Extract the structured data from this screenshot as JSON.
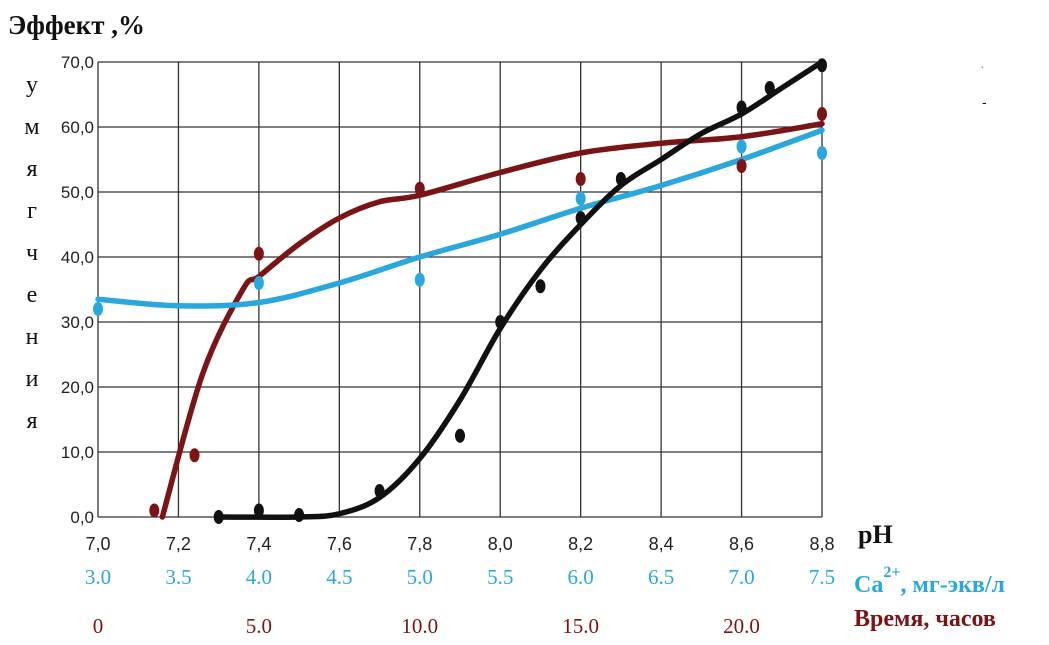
{
  "chart_data": {
    "type": "line",
    "ylabel": "Эффект ,%",
    "ylabel_vertical": [
      "у",
      "м",
      "я",
      "г",
      "ч",
      "е",
      "н",
      "и",
      "я"
    ],
    "y_ticks": [
      "0,0",
      "10,0",
      "20,0",
      "30,0",
      "40,0",
      "50,0",
      "60,0",
      "70,0"
    ],
    "ylim": [
      0,
      70
    ],
    "x_axes": [
      {
        "name": "pH",
        "ticks": [
          "7,0",
          "7,2",
          "7,4",
          "7,6",
          "7,8",
          "8,0",
          "8,2",
          "8,4",
          "8,6",
          "8,8"
        ],
        "range": [
          7.0,
          8.8
        ]
      },
      {
        "name": "Ca",
        "name_sup": "2+",
        "name_suffix": ", мг-экв/л",
        "ticks": [
          "3.0",
          "3.5",
          "4.0",
          "4.5",
          "5.0",
          "5.5",
          "6.0",
          "6.5",
          "7.0",
          "7.5"
        ],
        "range": [
          3.0,
          7.5
        ]
      },
      {
        "name": "Время, часов",
        "ticks": [
          "0",
          "5.0",
          "10.0",
          "15.0",
          "20.0"
        ],
        "range": [
          0,
          22.5
        ]
      }
    ],
    "grid": true,
    "series": [
      {
        "axis": "pH",
        "color": "#111111",
        "points": [
          [
            7.3,
            0.0
          ],
          [
            7.4,
            1.0
          ],
          [
            7.5,
            0.3
          ],
          [
            7.7,
            4.0
          ],
          [
            7.9,
            12.5
          ],
          [
            8.0,
            30.0
          ],
          [
            8.1,
            35.5
          ],
          [
            8.2,
            46.0
          ],
          [
            8.3,
            52.0
          ],
          [
            8.6,
            63.0
          ],
          [
            8.67,
            66.0
          ],
          [
            8.8,
            69.5
          ]
        ],
        "curve": [
          [
            7.3,
            0
          ],
          [
            7.5,
            0
          ],
          [
            7.6,
            0.5
          ],
          [
            7.7,
            3
          ],
          [
            7.8,
            9
          ],
          [
            7.9,
            18
          ],
          [
            8.0,
            29
          ],
          [
            8.1,
            38
          ],
          [
            8.2,
            45
          ],
          [
            8.3,
            51
          ],
          [
            8.4,
            55
          ],
          [
            8.5,
            59
          ],
          [
            8.6,
            62
          ],
          [
            8.7,
            66
          ],
          [
            8.8,
            70
          ]
        ]
      },
      {
        "axis": "Ca",
        "color": "#2aa7dc",
        "points": [
          [
            3.0,
            32.0
          ],
          [
            4.0,
            36.0
          ],
          [
            5.0,
            36.5
          ],
          [
            6.0,
            49.0
          ],
          [
            7.0,
            57.0
          ],
          [
            7.5,
            56.0
          ]
        ],
        "curve": [
          [
            3.0,
            33.5
          ],
          [
            3.5,
            32.5
          ],
          [
            4.0,
            33
          ],
          [
            4.5,
            36
          ],
          [
            5.0,
            40
          ],
          [
            5.5,
            43.5
          ],
          [
            6.0,
            47.5
          ],
          [
            6.5,
            51
          ],
          [
            7.0,
            55
          ],
          [
            7.5,
            59.5
          ]
        ]
      },
      {
        "axis": "Время, часов",
        "color": "#7b1416",
        "points": [
          [
            1.75,
            1.0
          ],
          [
            3.0,
            9.5
          ],
          [
            5.0,
            40.5
          ],
          [
            10.0,
            50.5
          ],
          [
            15.0,
            52.0
          ],
          [
            20.0,
            54.0
          ],
          [
            22.5,
            62.0
          ]
        ],
        "curve": [
          [
            2.0,
            0
          ],
          [
            3.25,
            22
          ],
          [
            4.5,
            35
          ],
          [
            5.0,
            37
          ],
          [
            6.25,
            42
          ],
          [
            7.5,
            46
          ],
          [
            8.75,
            48.5
          ],
          [
            10.0,
            49.5
          ],
          [
            12.5,
            53
          ],
          [
            15.0,
            56
          ],
          [
            17.5,
            57.5
          ],
          [
            20.0,
            58.5
          ],
          [
            22.5,
            60.5
          ]
        ]
      }
    ]
  },
  "colors": {
    "grid": "#333333",
    "ca": "#2aa7dc",
    "time": "#7b1416",
    "ph": "#111111"
  }
}
